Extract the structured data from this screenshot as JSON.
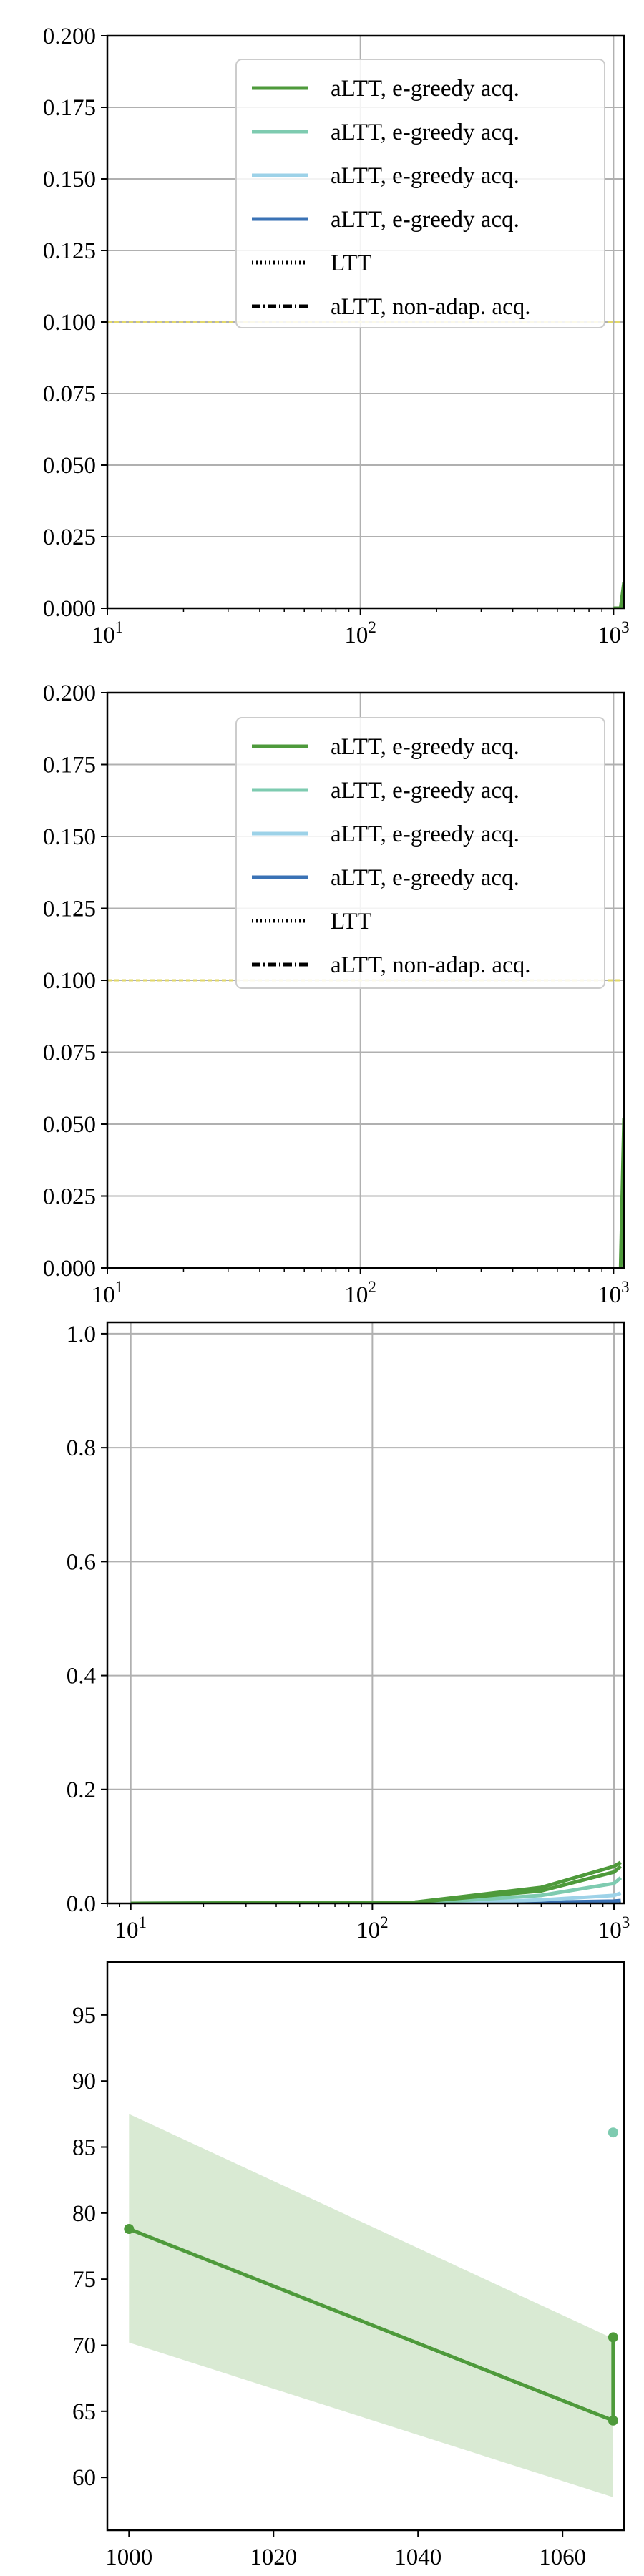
{
  "chart_data": [
    {
      "type": "line",
      "title": "",
      "xlabel": "",
      "ylabel": "",
      "xscale": "log",
      "xlim": [
        10,
        1100
      ],
      "ylim": [
        0,
        0.2
      ],
      "grid": true,
      "legend_position": "upper-right",
      "x_tick_labels": [
        {
          "value": 10,
          "base": "10",
          "exp": "1"
        },
        {
          "value": 100,
          "base": "10",
          "exp": "2"
        },
        {
          "value": 1000,
          "base": "10",
          "exp": "3"
        }
      ],
      "y_tick_labels": [
        {
          "value": 0.0,
          "label": "0.000"
        },
        {
          "value": 0.025,
          "label": "0.025"
        },
        {
          "value": 0.05,
          "label": "0.050"
        },
        {
          "value": 0.075,
          "label": "0.075"
        },
        {
          "value": 0.1,
          "label": "0.100"
        },
        {
          "value": 0.125,
          "label": "0.125"
        },
        {
          "value": 0.15,
          "label": "0.150"
        },
        {
          "value": 0.175,
          "label": "0.175"
        },
        {
          "value": 0.2,
          "label": "0.200"
        }
      ],
      "legend": [
        {
          "label": "aLTT, e-greedy acq.",
          "color": "#4e9a3b",
          "style": "solid"
        },
        {
          "label": "aLTT, e-greedy acq.",
          "color": "#7ecbb0",
          "style": "solid"
        },
        {
          "label": "aLTT, e-greedy acq.",
          "color": "#9dd2e8",
          "style": "solid"
        },
        {
          "label": "aLTT, e-greedy acq.",
          "color": "#3a72b5",
          "style": "solid"
        },
        {
          "label": "LTT",
          "color": "#000000",
          "style": "dotted"
        },
        {
          "label": "aLTT, non-adap. acq.",
          "color": "#000000",
          "style": "dashdot"
        }
      ],
      "series": [
        {
          "color": "#e2d86a",
          "style": "dashed",
          "x": [
            10,
            1100
          ],
          "y": [
            0.1,
            0.1
          ]
        },
        {
          "color": "#4e9a3b",
          "style": "solid",
          "x": [
            1067,
            1100
          ],
          "y": [
            0.0,
            0.009
          ]
        },
        {
          "color": "#4e9a3b",
          "style": "solid",
          "x": [
            1000,
            1100
          ],
          "y": [
            0.0,
            0.0
          ]
        }
      ]
    },
    {
      "type": "line",
      "title": "",
      "xlabel": "",
      "ylabel": "",
      "xscale": "log",
      "xlim": [
        10,
        1100
      ],
      "ylim": [
        0,
        0.2
      ],
      "grid": true,
      "legend_position": "upper-right",
      "x_tick_labels": [
        {
          "value": 10,
          "base": "10",
          "exp": "1"
        },
        {
          "value": 100,
          "base": "10",
          "exp": "2"
        },
        {
          "value": 1000,
          "base": "10",
          "exp": "3"
        }
      ],
      "y_tick_labels": [
        {
          "value": 0.0,
          "label": "0.000"
        },
        {
          "value": 0.025,
          "label": "0.025"
        },
        {
          "value": 0.05,
          "label": "0.050"
        },
        {
          "value": 0.075,
          "label": "0.075"
        },
        {
          "value": 0.1,
          "label": "0.100"
        },
        {
          "value": 0.125,
          "label": "0.125"
        },
        {
          "value": 0.15,
          "label": "0.150"
        },
        {
          "value": 0.175,
          "label": "0.175"
        },
        {
          "value": 0.2,
          "label": "0.200"
        }
      ],
      "legend": [
        {
          "label": "aLTT, e-greedy acq.",
          "color": "#4e9a3b",
          "style": "solid"
        },
        {
          "label": "aLTT, e-greedy acq.",
          "color": "#7ecbb0",
          "style": "solid"
        },
        {
          "label": "aLTT, e-greedy acq.",
          "color": "#9dd2e8",
          "style": "solid"
        },
        {
          "label": "aLTT, e-greedy acq.",
          "color": "#3a72b5",
          "style": "solid"
        },
        {
          "label": "LTT",
          "color": "#000000",
          "style": "dotted"
        },
        {
          "label": "aLTT, non-adap. acq.",
          "color": "#000000",
          "style": "dashdot"
        }
      ],
      "series": [
        {
          "color": "#e2d86a",
          "style": "dashed",
          "x": [
            10,
            1100
          ],
          "y": [
            0.1,
            0.1
          ]
        },
        {
          "color": "#4e9a3b",
          "style": "solid",
          "x": [
            1067,
            1100
          ],
          "y": [
            0.0,
            0.052
          ]
        }
      ]
    },
    {
      "type": "line",
      "title": "",
      "xlabel": "",
      "ylabel": "",
      "xscale": "log",
      "xlim": [
        8,
        1100
      ],
      "ylim": [
        0,
        1.02
      ],
      "grid": true,
      "x_tick_labels": [
        {
          "value": 10,
          "base": "10",
          "exp": "1"
        },
        {
          "value": 100,
          "base": "10",
          "exp": "2"
        },
        {
          "value": 1000,
          "base": "10",
          "exp": "3"
        }
      ],
      "y_tick_labels": [
        {
          "value": 0.0,
          "label": "0.0"
        },
        {
          "value": 0.2,
          "label": "0.2"
        },
        {
          "value": 0.4,
          "label": "0.4"
        },
        {
          "value": 0.6,
          "label": "0.6"
        },
        {
          "value": 0.8,
          "label": "0.8"
        },
        {
          "value": 1.0,
          "label": "1.0"
        }
      ],
      "series": [
        {
          "color": "#000000",
          "style": "dashdot",
          "x": [
            10,
            1067
          ],
          "y": [
            0.0,
            0.0
          ]
        },
        {
          "color": "#3a72b5",
          "style": "solid",
          "x": [
            10,
            200,
            500,
            1000,
            1067
          ],
          "y": [
            0.0,
            0.0,
            0.002,
            0.004,
            0.005
          ]
        },
        {
          "color": "#9dd2e8",
          "style": "solid",
          "x": [
            10,
            200,
            500,
            1000,
            1067
          ],
          "y": [
            0.0,
            0.001,
            0.006,
            0.014,
            0.018
          ]
        },
        {
          "color": "#7ecbb0",
          "style": "solid",
          "x": [
            10,
            180,
            500,
            1000,
            1067
          ],
          "y": [
            0.0,
            0.002,
            0.014,
            0.035,
            0.045
          ]
        },
        {
          "color": "#4e9a3b",
          "style": "solid",
          "x": [
            10,
            150,
            500,
            1000,
            1067
          ],
          "y": [
            0.0,
            0.002,
            0.022,
            0.055,
            0.065
          ]
        },
        {
          "color": "#4e9a3b",
          "style": "solid",
          "x": [
            150,
            500,
            1000,
            1067
          ],
          "y": [
            0.002,
            0.028,
            0.065,
            0.072
          ]
        }
      ]
    },
    {
      "type": "line",
      "title": "",
      "xlabel": "",
      "ylabel": "",
      "xscale": "linear",
      "xlim": [
        997,
        1068.5
      ],
      "ylim": [
        56,
        99
      ],
      "grid": false,
      "x_tick_labels": [
        {
          "value": 1000,
          "label": "1000"
        },
        {
          "value": 1020,
          "label": "1020"
        },
        {
          "value": 1040,
          "label": "1040"
        },
        {
          "value": 1060,
          "label": "1060"
        }
      ],
      "y_tick_labels": [
        {
          "value": 60,
          "label": "60"
        },
        {
          "value": 65,
          "label": "65"
        },
        {
          "value": 70,
          "label": "70"
        },
        {
          "value": 75,
          "label": "75"
        },
        {
          "value": 80,
          "label": "80"
        },
        {
          "value": 85,
          "label": "85"
        },
        {
          "value": 90,
          "label": "90"
        },
        {
          "value": 95,
          "label": "95"
        }
      ],
      "band": {
        "color": "#d9ead3",
        "x": [
          1000,
          1067,
          1067,
          1000
        ],
        "y": [
          87.5,
          70.5,
          58.5,
          70.2
        ]
      },
      "series": [
        {
          "color": "#4e9a3b",
          "style": "solid",
          "markers": true,
          "x": [
            1000,
            1067,
            1067
          ],
          "y": [
            78.8,
            64.3,
            70.6
          ]
        }
      ],
      "points": [
        {
          "color": "#7ecbb0",
          "x": 1067,
          "y": 86.1
        }
      ]
    }
  ]
}
